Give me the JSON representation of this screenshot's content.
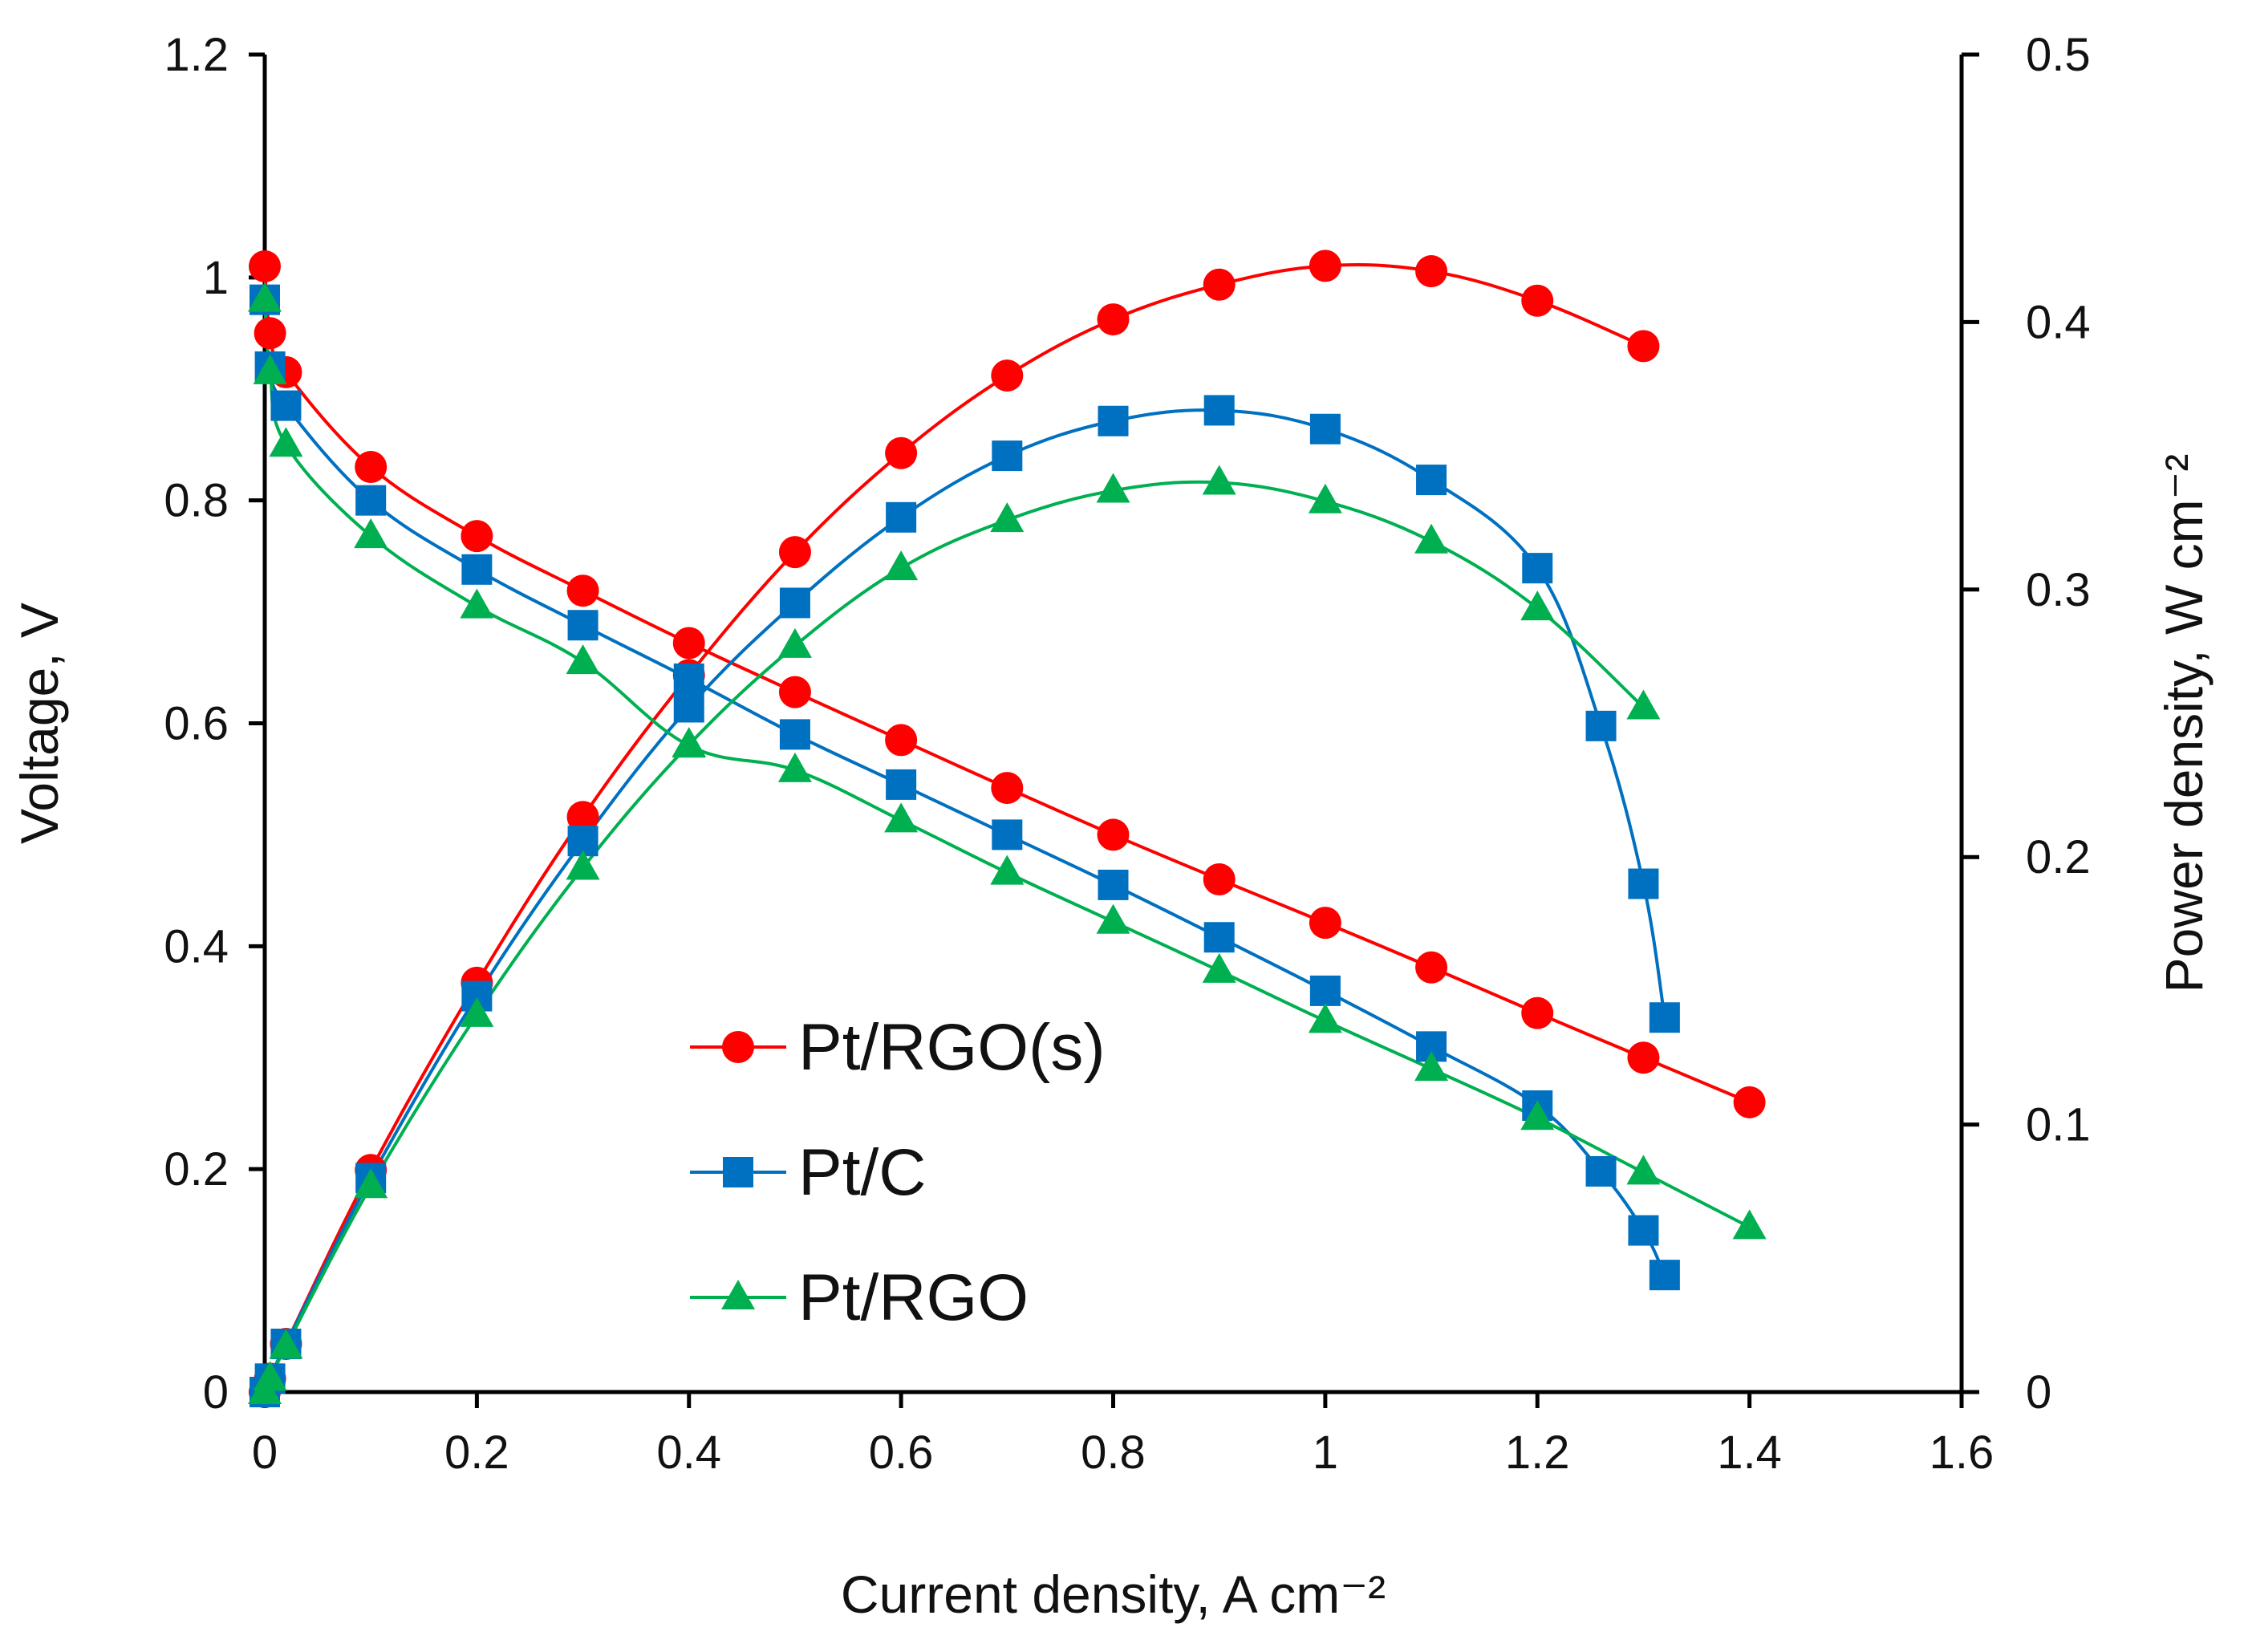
{
  "chart_data": {
    "type": "line",
    "title": "",
    "xlabel": "Current density, A cm⁻²",
    "ylabel_left": "Voltage, V",
    "ylabel_right": "Power density, W cm⁻²",
    "xlim": [
      0,
      1.6
    ],
    "ylim_left": [
      0,
      1.2
    ],
    "ylim_right": [
      0,
      0.5
    ],
    "x_ticks": [
      "0",
      "0.2",
      "0.4",
      "0.6",
      "0.8",
      "1",
      "1.2",
      "1.4",
      "1.6"
    ],
    "y_left_ticks": [
      "0",
      "0.2",
      "0.4",
      "0.6",
      "0.8",
      "1",
      "1.2"
    ],
    "y_right_ticks": [
      "0",
      "0.1",
      "0.2",
      "0.3",
      "0.4",
      "0.5"
    ],
    "grid": false,
    "legend_position": "center-left",
    "series": [
      {
        "name": "Pt/RGO(s)",
        "color": "#ff0000",
        "marker": "circle",
        "voltage": {
          "x": [
            0,
            0.005,
            0.02,
            0.1,
            0.2,
            0.3,
            0.4,
            0.5,
            0.6,
            0.7,
            0.8,
            0.9,
            1.0,
            1.1,
            1.2,
            1.3,
            1.4
          ],
          "y": [
            1.01,
            0.95,
            0.915,
            0.83,
            0.768,
            0.719,
            0.672,
            0.628,
            0.585,
            0.542,
            0.5,
            0.46,
            0.421,
            0.381,
            0.34,
            0.3,
            0.26
          ]
        },
        "power": {
          "x": [
            0,
            0.005,
            0.02,
            0.1,
            0.2,
            0.3,
            0.4,
            0.5,
            0.6,
            0.7,
            0.8,
            0.9,
            1.0,
            1.1,
            1.2,
            1.3
          ],
          "y": [
            0,
            0.005,
            0.018,
            0.083,
            0.153,
            0.215,
            0.268,
            0.314,
            0.351,
            0.38,
            0.401,
            0.414,
            0.421,
            0.419,
            0.408,
            0.391
          ]
        }
      },
      {
        "name": "Pt/C",
        "color": "#0070c0",
        "marker": "square",
        "voltage": {
          "x": [
            0,
            0.005,
            0.02,
            0.1,
            0.2,
            0.3,
            0.4,
            0.5,
            0.6,
            0.7,
            0.8,
            0.9,
            1.0,
            1.1,
            1.2,
            1.26,
            1.3,
            1.32
          ],
          "y": [
            0.98,
            0.92,
            0.885,
            0.8,
            0.738,
            0.688,
            0.64,
            0.59,
            0.545,
            0.5,
            0.455,
            0.408,
            0.36,
            0.31,
            0.257,
            0.198,
            0.145,
            0.105
          ]
        },
        "power": {
          "x": [
            0,
            0.005,
            0.02,
            0.1,
            0.2,
            0.3,
            0.4,
            0.5,
            0.6,
            0.7,
            0.8,
            0.9,
            1.0,
            1.1,
            1.2,
            1.26,
            1.3,
            1.32
          ],
          "y": [
            0,
            0.005,
            0.018,
            0.08,
            0.148,
            0.206,
            0.256,
            0.295,
            0.327,
            0.35,
            0.363,
            0.367,
            0.36,
            0.341,
            0.308,
            0.249,
            0.19,
            0.14
          ]
        }
      },
      {
        "name": "Pt/RGO",
        "color": "#00b050",
        "marker": "triangle",
        "voltage": {
          "x": [
            0,
            0.005,
            0.02,
            0.1,
            0.2,
            0.3,
            0.4,
            0.5,
            0.6,
            0.7,
            0.8,
            0.9,
            1.0,
            1.1,
            1.2,
            1.3,
            1.4
          ],
          "y": [
            0.98,
            0.915,
            0.85,
            0.768,
            0.705,
            0.655,
            0.58,
            0.558,
            0.513,
            0.466,
            0.422,
            0.378,
            0.333,
            0.29,
            0.246,
            0.197,
            0.148
          ]
        },
        "power": {
          "x": [
            0,
            0.005,
            0.02,
            0.1,
            0.2,
            0.3,
            0.4,
            0.5,
            0.6,
            0.7,
            0.8,
            0.9,
            1.0,
            1.1,
            1.2,
            1.3
          ],
          "y": [
            0,
            0.005,
            0.017,
            0.077,
            0.141,
            0.196,
            0.242,
            0.279,
            0.308,
            0.326,
            0.337,
            0.34,
            0.333,
            0.318,
            0.293,
            0.256
          ]
        }
      }
    ]
  }
}
